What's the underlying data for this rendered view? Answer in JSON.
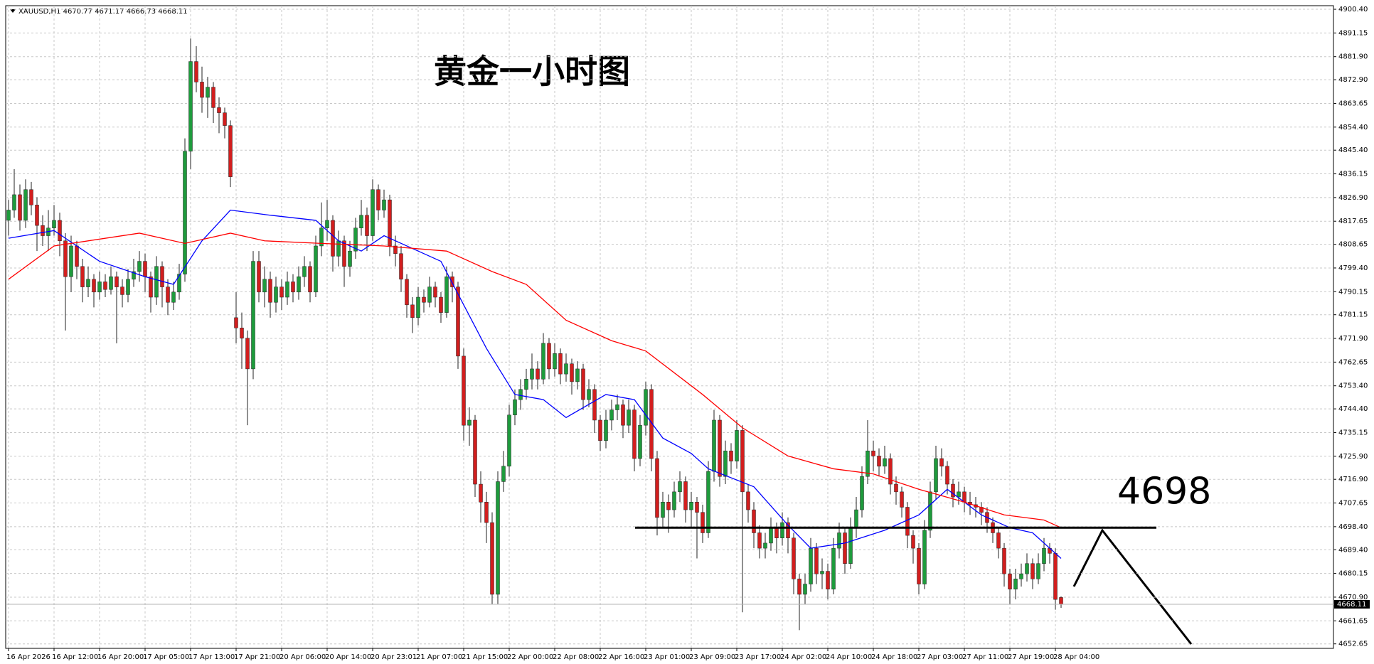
{
  "chart_data": {
    "type": "candlestick",
    "symbol": "XAUUSD,H1",
    "title": "黄金一小时图",
    "level": 4698,
    "ylim": [
      4650.9,
      4901.8
    ],
    "yticks": [
      4652.65,
      4661.65,
      {
        "value": 4670.9,
        "label": "4670.90"
      },
      4680.15,
      {
        "value": 4689.4,
        "label": "4689.40"
      },
      {
        "value": 4698.4,
        "label": "4698.40"
      },
      4707.65,
      {
        "value": 4716.9,
        "label": "4716.90"
      },
      {
        "value": 4725.9,
        "label": "4725.90"
      },
      4735.15,
      {
        "value": 4744.4,
        "label": "4744.40"
      },
      {
        "value": 4753.4,
        "label": "4753.40"
      },
      4762.65,
      {
        "value": 4771.9,
        "label": "4771.90"
      },
      4781.15,
      4790.15,
      {
        "value": 4799.4,
        "label": "4799.40"
      },
      4808.65,
      4817.65,
      {
        "value": 4826.9,
        "label": "4826.90"
      },
      4836.15,
      {
        "value": 4845.4,
        "label": "4845.40"
      },
      {
        "value": 4854.4,
        "label": "4854.40"
      },
      4863.65,
      {
        "value": 4872.9,
        "label": "4872.90"
      },
      {
        "value": 4881.9,
        "label": "4881.90"
      },
      4891.15,
      {
        "value": 4900.4,
        "label": "4900.40"
      }
    ],
    "grid": true,
    "xtick_labels": [
      "16 Apr 2026",
      "16 Apr 12:00",
      "16 Apr 20:00",
      "17 Apr 05:00",
      "17 Apr 13:00",
      "17 Apr 21:00",
      "20 Apr 06:00",
      "20 Apr 14:00",
      "20 Apr 23:01",
      "21 Apr 07:00",
      "21 Apr 15:00",
      "22 Apr 00:00",
      "22 Apr 08:00",
      "22 Apr 16:00",
      "23 Apr 01:00",
      "23 Apr 09:00",
      "23 Apr 17:00",
      "24 Apr 02:00",
      "24 Apr 10:00",
      "24 Apr 18:00",
      "27 Apr 03:00",
      "27 Apr 11:00",
      "27 Apr 19:00",
      "28 Apr 04:00"
    ],
    "up_color": "#1e9b3c",
    "down_color": "#d21e1e",
    "ohlc": [
      [
        4818,
        4826,
        4812,
        4822
      ],
      [
        4822,
        4838,
        4819,
        4828
      ],
      [
        4828,
        4832,
        4814,
        4818
      ],
      [
        4818,
        4834,
        4815,
        4830
      ],
      [
        4830,
        4833,
        4820,
        4824
      ],
      [
        4824,
        4827,
        4806,
        4816
      ],
      [
        4816,
        4820,
        4808,
        4812
      ],
      [
        4812,
        4822,
        4806,
        4815
      ],
      [
        4815,
        4824,
        4812,
        4818
      ],
      [
        4818,
        4821,
        4804,
        4810
      ],
      [
        4810,
        4813,
        4775,
        4796
      ],
      [
        4796,
        4812,
        4790,
        4808
      ],
      [
        4808,
        4810,
        4795,
        4800
      ],
      [
        4800,
        4803,
        4786,
        4792
      ],
      [
        4792,
        4800,
        4788,
        4795
      ],
      [
        4795,
        4797,
        4784,
        4790
      ],
      [
        4790,
        4798,
        4787,
        4794
      ],
      [
        4794,
        4797,
        4788,
        4791
      ],
      [
        4791,
        4800,
        4789,
        4796
      ],
      [
        4796,
        4798,
        4770,
        4792
      ],
      [
        4792,
        4795,
        4784,
        4789
      ],
      [
        4789,
        4799,
        4786,
        4795
      ],
      [
        4795,
        4803,
        4792,
        4798
      ],
      [
        4798,
        4806,
        4794,
        4802
      ],
      [
        4802,
        4805,
        4790,
        4796
      ],
      [
        4796,
        4798,
        4782,
        4788
      ],
      [
        4788,
        4804,
        4785,
        4800
      ],
      [
        4800,
        4802,
        4784,
        4792
      ],
      [
        4792,
        4795,
        4781,
        4786
      ],
      [
        4786,
        4794,
        4783,
        4790
      ],
      [
        4790,
        4801,
        4787,
        4797
      ],
      [
        4797,
        4850,
        4794,
        4845
      ],
      [
        4845,
        4889,
        4838,
        4880
      ],
      [
        4880,
        4886,
        4868,
        4872
      ],
      [
        4872,
        4878,
        4860,
        4866
      ],
      [
        4866,
        4874,
        4858,
        4870
      ],
      [
        4870,
        4872,
        4856,
        4862
      ],
      [
        4862,
        4866,
        4852,
        4860
      ],
      [
        4860,
        4862,
        4850,
        4855
      ],
      [
        4855,
        4857,
        4831,
        4835
      ],
      [
        4780,
        4790,
        4770,
        4776
      ],
      [
        4776,
        4782,
        4760,
        4772
      ],
      [
        4772,
        4775,
        4738,
        4760
      ],
      [
        4760,
        4806,
        4756,
        4802
      ],
      [
        4802,
        4806,
        4786,
        4790
      ],
      [
        4790,
        4800,
        4784,
        4795
      ],
      [
        4795,
        4798,
        4780,
        4786
      ],
      [
        4786,
        4796,
        4782,
        4792
      ],
      [
        4792,
        4795,
        4783,
        4788
      ],
      [
        4788,
        4798,
        4785,
        4794
      ],
      [
        4794,
        4797,
        4786,
        4790
      ],
      [
        4790,
        4800,
        4787,
        4796
      ],
      [
        4796,
        4804,
        4792,
        4800
      ],
      [
        4800,
        4802,
        4786,
        4790
      ],
      [
        4790,
        4812,
        4788,
        4808
      ],
      [
        4808,
        4825,
        4804,
        4815
      ],
      [
        4815,
        4826,
        4810,
        4818
      ],
      [
        4818,
        4820,
        4798,
        4804
      ],
      [
        4804,
        4814,
        4800,
        4810
      ],
      [
        4810,
        4812,
        4792,
        4800
      ],
      [
        4800,
        4810,
        4796,
        4806
      ],
      [
        4806,
        4819,
        4803,
        4815
      ],
      [
        4815,
        4826,
        4812,
        4820
      ],
      [
        4820,
        4823,
        4806,
        4812
      ],
      [
        4812,
        4834,
        4810,
        4830
      ],
      [
        4830,
        4832,
        4818,
        4822
      ],
      [
        4822,
        4830,
        4819,
        4826
      ],
      [
        4826,
        4828,
        4804,
        4808
      ],
      [
        4808,
        4812,
        4800,
        4805
      ],
      [
        4805,
        4808,
        4790,
        4795
      ],
      [
        4795,
        4797,
        4780,
        4785
      ],
      [
        4785,
        4788,
        4774,
        4780
      ],
      [
        4780,
        4792,
        4777,
        4788
      ],
      [
        4788,
        4791,
        4782,
        4786
      ],
      [
        4786,
        4796,
        4784,
        4792
      ],
      [
        4792,
        4794,
        4784,
        4788
      ],
      [
        4788,
        4790,
        4778,
        4782
      ],
      [
        4782,
        4800,
        4780,
        4796
      ],
      [
        4796,
        4798,
        4786,
        4792
      ],
      [
        4792,
        4794,
        4760,
        4765
      ],
      [
        4765,
        4768,
        4732,
        4738
      ],
      [
        4738,
        4745,
        4730,
        4740
      ],
      [
        4740,
        4742,
        4710,
        4715
      ],
      [
        4715,
        4720,
        4700,
        4708
      ],
      [
        4708,
        4712,
        4692,
        4700
      ],
      [
        4700,
        4704,
        4668,
        4672
      ],
      [
        4672,
        4720,
        4668,
        4716
      ],
      [
        4716,
        4728,
        4712,
        4722
      ],
      [
        4722,
        4746,
        4718,
        4742
      ],
      [
        4742,
        4752,
        4738,
        4748
      ],
      [
        4748,
        4756,
        4744,
        4752
      ],
      [
        4752,
        4760,
        4748,
        4756
      ],
      [
        4756,
        4766,
        4752,
        4760
      ],
      [
        4760,
        4763,
        4752,
        4756
      ],
      [
        4756,
        4774,
        4754,
        4770
      ],
      [
        4770,
        4772,
        4756,
        4760
      ],
      [
        4760,
        4770,
        4757,
        4766
      ],
      [
        4766,
        4768,
        4754,
        4758
      ],
      [
        4758,
        4766,
        4755,
        4762
      ],
      [
        4762,
        4764,
        4750,
        4755
      ],
      [
        4755,
        4763,
        4752,
        4760
      ],
      [
        4760,
        4762,
        4744,
        4748
      ],
      [
        4748,
        4756,
        4745,
        4752
      ],
      [
        4752,
        4754,
        4735,
        4740
      ],
      [
        4740,
        4742,
        4728,
        4732
      ],
      [
        4732,
        4744,
        4729,
        4740
      ],
      [
        4740,
        4748,
        4736,
        4744
      ],
      [
        4744,
        4750,
        4740,
        4746
      ],
      [
        4746,
        4748,
        4733,
        4738
      ],
      [
        4738,
        4748,
        4735,
        4744
      ],
      [
        4744,
        4746,
        4720,
        4725
      ],
      [
        4725,
        4742,
        4722,
        4738
      ],
      [
        4738,
        4755,
        4734,
        4752
      ],
      [
        4752,
        4754,
        4720,
        4725
      ],
      [
        4725,
        4728,
        4695,
        4702
      ],
      [
        4702,
        4712,
        4698,
        4708
      ],
      [
        4708,
        4711,
        4696,
        4705
      ],
      [
        4705,
        4716,
        4702,
        4712
      ],
      [
        4712,
        4720,
        4708,
        4716
      ],
      [
        4716,
        4718,
        4700,
        4705
      ],
      [
        4705,
        4712,
        4698,
        4708
      ],
      [
        4708,
        4710,
        4686,
        4704
      ],
      [
        4704,
        4707,
        4692,
        4696
      ],
      [
        4696,
        4724,
        4694,
        4720
      ],
      [
        4720,
        4744,
        4716,
        4740
      ],
      [
        4740,
        4742,
        4714,
        4718
      ],
      [
        4718,
        4732,
        4715,
        4728
      ],
      [
        4728,
        4731,
        4719,
        4724
      ],
      [
        4724,
        4740,
        4721,
        4736
      ],
      [
        4736,
        4738,
        4665,
        4712
      ],
      [
        4712,
        4715,
        4700,
        4705
      ],
      [
        4705,
        4708,
        4690,
        4696
      ],
      [
        4696,
        4699,
        4686,
        4690
      ],
      [
        4690,
        4696,
        4686,
        4692
      ],
      [
        4692,
        4702,
        4689,
        4698
      ],
      [
        4698,
        4700,
        4688,
        4694
      ],
      [
        4694,
        4704,
        4691,
        4700
      ],
      [
        4700,
        4702,
        4688,
        4694
      ],
      [
        4694,
        4696,
        4672,
        4678
      ],
      [
        4678,
        4680,
        4658,
        4672
      ],
      [
        4672,
        4680,
        4668,
        4676
      ],
      [
        4676,
        4694,
        4673,
        4690
      ],
      [
        4690,
        4692,
        4676,
        4680
      ],
      [
        4680,
        4686,
        4674,
        4681
      ],
      [
        4681,
        4684,
        4670,
        4674
      ],
      [
        4674,
        4694,
        4672,
        4690
      ],
      [
        4690,
        4700,
        4686,
        4696
      ],
      [
        4696,
        4698,
        4680,
        4684
      ],
      [
        4684,
        4702,
        4682,
        4698
      ],
      [
        4698,
        4710,
        4694,
        4705
      ],
      [
        4705,
        4722,
        4702,
        4718
      ],
      [
        4718,
        4740,
        4715,
        4728
      ],
      [
        4728,
        4732,
        4720,
        4726
      ],
      [
        4726,
        4729,
        4718,
        4722
      ],
      [
        4722,
        4730,
        4719,
        4725
      ],
      [
        4725,
        4727,
        4711,
        4715
      ],
      [
        4715,
        4718,
        4707,
        4712
      ],
      [
        4712,
        4714,
        4702,
        4706
      ],
      [
        4706,
        4708,
        4690,
        4695
      ],
      [
        4695,
        4697,
        4684,
        4690
      ],
      [
        4690,
        4692,
        4672,
        4676
      ],
      [
        4676,
        4701,
        4674,
        4697
      ],
      [
        4697,
        4716,
        4694,
        4712
      ],
      [
        4712,
        4730,
        4709,
        4725
      ],
      [
        4725,
        4729,
        4718,
        4722
      ],
      [
        4722,
        4724,
        4711,
        4715
      ],
      [
        4715,
        4717,
        4706,
        4710
      ],
      [
        4710,
        4716,
        4707,
        4712
      ],
      [
        4712,
        4714,
        4704,
        4708
      ],
      [
        4708,
        4712,
        4703,
        4707
      ],
      [
        4707,
        4710,
        4702,
        4706
      ],
      [
        4706,
        4708,
        4699,
        4704
      ],
      [
        4704,
        4706,
        4696,
        4700
      ],
      [
        4700,
        4702,
        4692,
        4696
      ],
      [
        4696,
        4698,
        4686,
        4690
      ],
      [
        4690,
        4692,
        4675,
        4680
      ],
      [
        4680,
        4682,
        4668,
        4674
      ],
      [
        4674,
        4682,
        4670,
        4678
      ],
      [
        4678,
        4684,
        4675,
        4680
      ],
      [
        4680,
        4688,
        4677,
        4684
      ],
      [
        4684,
        4686,
        4674,
        4678
      ],
      [
        4678,
        4688,
        4676,
        4684
      ],
      [
        4684,
        4694,
        4681,
        4690
      ],
      [
        4690,
        4692,
        4684,
        4688
      ],
      [
        4688,
        4690,
        4666,
        4670
      ],
      [
        4670.77,
        4671.17,
        4666.73,
        4668.11
      ]
    ],
    "series": [
      {
        "color": "#0000ff",
        "x": [
          0,
          8,
          16,
          24,
          29,
          34,
          39,
          46,
          54,
          58,
          62,
          66,
          70,
          76,
          80,
          84,
          89,
          94,
          98,
          105,
          110,
          115,
          120,
          123,
          131,
          137,
          141,
          147,
          154,
          160,
          165,
          171,
          176,
          180,
          185
        ],
        "values": [
          4811,
          4814,
          4802,
          4796,
          4793,
          4810,
          4822,
          4820,
          4818,
          4810,
          4806,
          4812,
          4808,
          4802,
          4785,
          4768,
          4750,
          4748,
          4741,
          4750,
          4748,
          4733,
          4727,
          4721,
          4714,
          4699,
          4690,
          4692,
          4697,
          4703,
          4713,
          4703,
          4698,
          4696,
          4686
        ]
      },
      {
        "color": "#ff0000",
        "x": [
          0,
          8,
          23,
          31,
          39,
          45,
          55,
          66,
          77,
          85,
          91,
          98,
          106,
          112,
          122,
          129,
          137,
          145,
          152,
          160,
          168,
          175,
          182,
          185
        ],
        "values": [
          4795,
          4808,
          4813,
          4809,
          4813,
          4810,
          4809,
          4808,
          4806,
          4798,
          4793,
          4779,
          4771,
          4767,
          4750,
          4737,
          4726,
          4721,
          4719,
          4713,
          4708,
          4703,
          4701,
          4698
        ]
      }
    ]
  }
}
